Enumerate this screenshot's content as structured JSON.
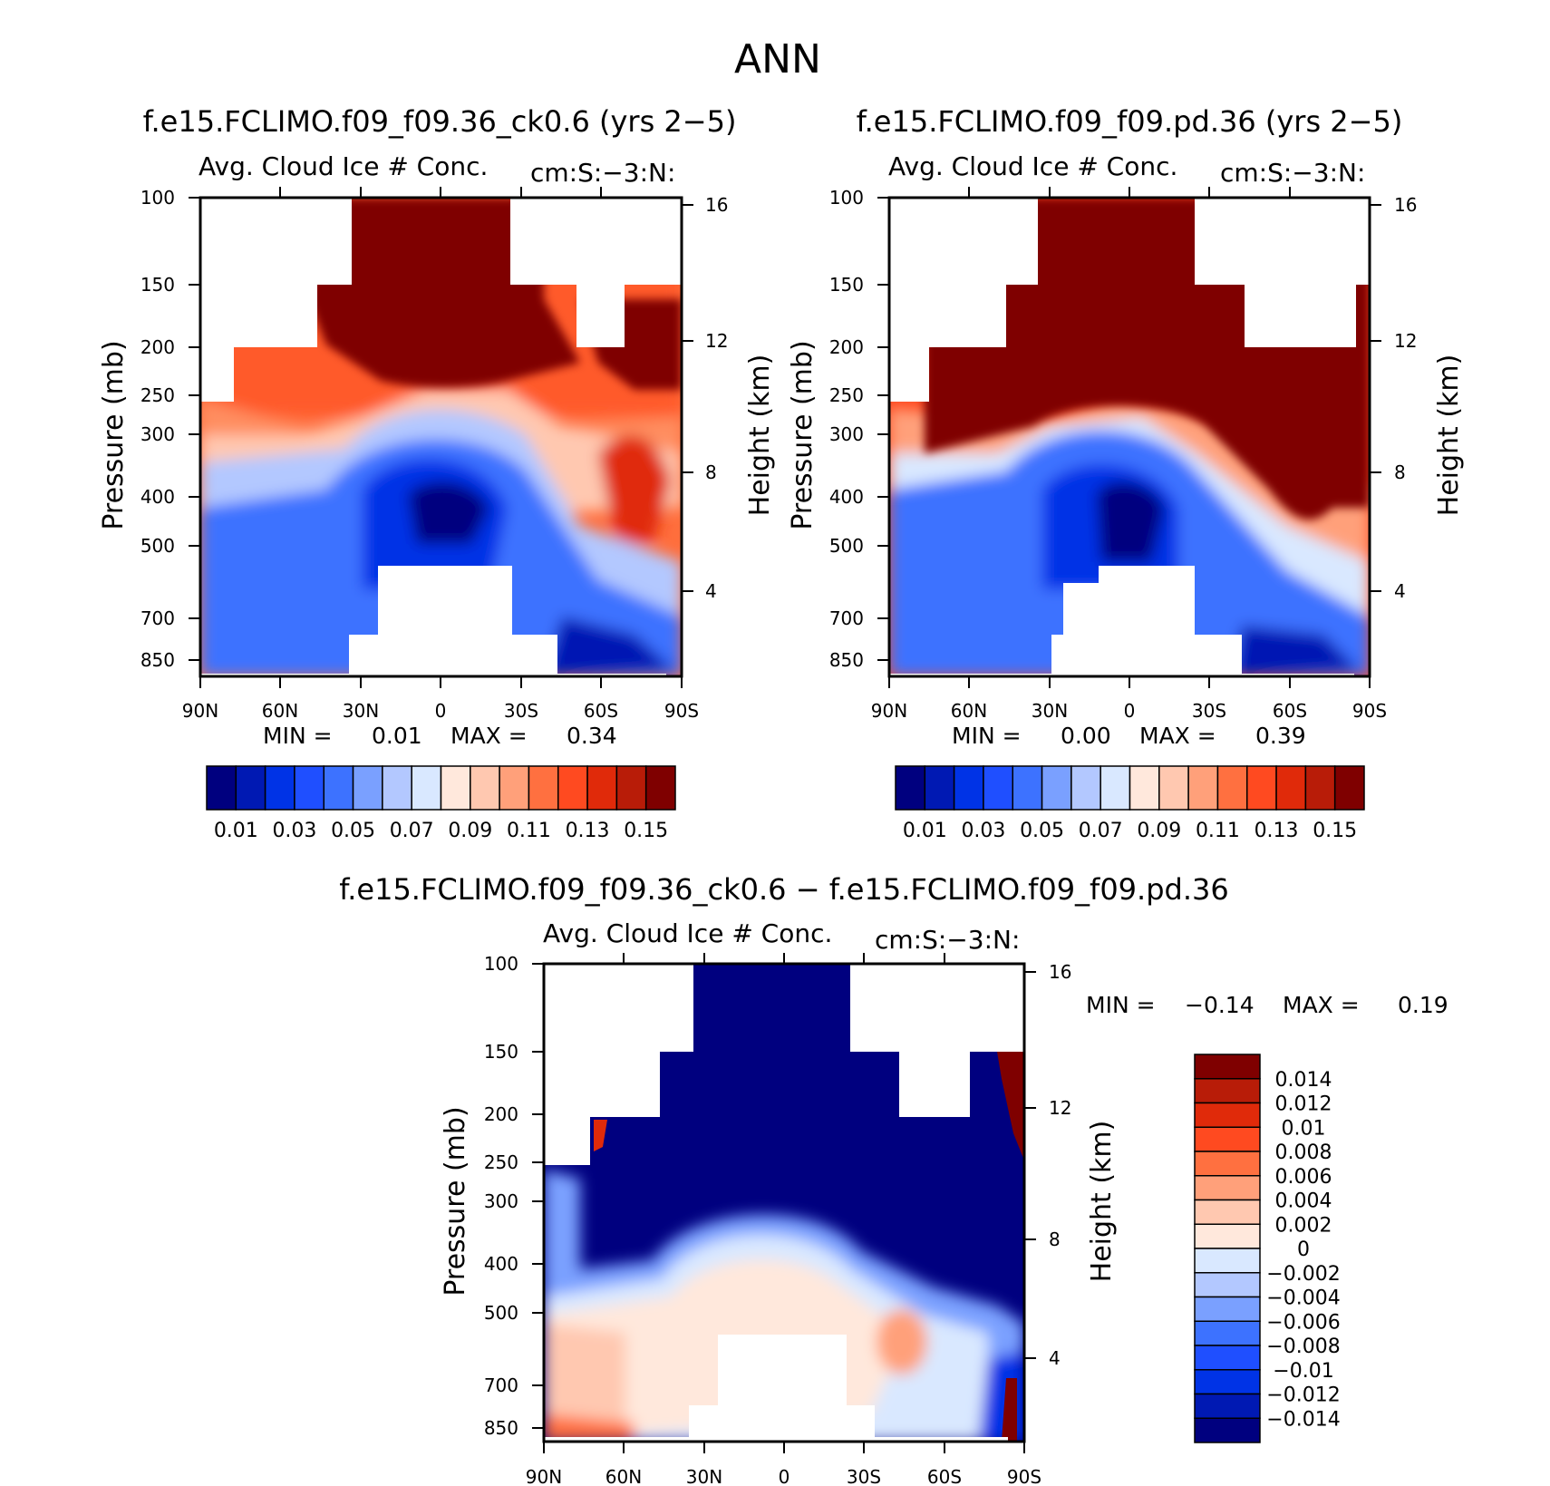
{
  "main_title": "ANN",
  "panels": [
    {
      "title": "f.e15.FCLIMO.f09_f09.36_ck0.6 (yrs 2−5)",
      "subtitle_left": "Avg. Cloud Ice # Conc.",
      "subtitle_right": "cm:S:−3:N:",
      "ylabel": "Pressure (mb)",
      "ylabel_right": "Height (km)",
      "min_label": "MIN =",
      "min_value": "0.01",
      "max_label": "MAX =",
      "max_value": "0.34"
    },
    {
      "title": "f.e15.FCLIMO.f09_f09.pd.36 (yrs 2−5)",
      "subtitle_left": "Avg. Cloud Ice # Conc.",
      "subtitle_right": "cm:S:−3:N:",
      "ylabel": "Pressure (mb)",
      "ylabel_right": "Height (km)",
      "min_label": "MIN =",
      "min_value": "0.00",
      "max_label": "MAX =",
      "max_value": "0.39"
    },
    {
      "title": "f.e15.FCLIMO.f09_f09.36_ck0.6 − f.e15.FCLIMO.f09_f09.pd.36",
      "subtitle_left": "Avg. Cloud Ice # Conc.",
      "subtitle_right": "cm:S:−3:N:",
      "ylabel": "Pressure (mb)",
      "ylabel_right": "Height (km)",
      "min_label": "MIN =",
      "min_value": "−0.14",
      "max_label": "MAX =",
      "max_value": "0.19"
    }
  ],
  "chart_data": [
    {
      "type": "heatmap",
      "title": "f.e15.FCLIMO.f09_f09.36_ck0.6 (yrs 2−5)",
      "x_ticks": [
        "90N",
        "60N",
        "30N",
        "0",
        "30S",
        "60S",
        "90S"
      ],
      "y_ticks": [
        "100",
        "150",
        "200",
        "250",
        "300",
        "400",
        "500",
        "700",
        "850"
      ],
      "y2_ticks": [
        "16",
        "12",
        "8",
        "4"
      ],
      "xlabel": "",
      "ylabel": "Pressure (mb)",
      "y2label": "Height (km)",
      "min": 0.01,
      "max": 0.34
    },
    {
      "type": "heatmap",
      "title": "f.e15.FCLIMO.f09_f09.pd.36 (yrs 2−5)",
      "x_ticks": [
        "90N",
        "60N",
        "30N",
        "0",
        "30S",
        "60S",
        "90S"
      ],
      "y_ticks": [
        "100",
        "150",
        "200",
        "250",
        "300",
        "400",
        "500",
        "700",
        "850"
      ],
      "y2_ticks": [
        "16",
        "12",
        "8",
        "4"
      ],
      "xlabel": "",
      "ylabel": "Pressure (mb)",
      "y2label": "Height (km)",
      "min": 0.0,
      "max": 0.39
    },
    {
      "type": "heatmap",
      "title": "f.e15.FCLIMO.f09_f09.36_ck0.6 − f.e15.FCLIMO.f09_f09.pd.36",
      "x_ticks": [
        "90N",
        "60N",
        "30N",
        "0",
        "30S",
        "60S",
        "90S"
      ],
      "y_ticks": [
        "100",
        "150",
        "200",
        "250",
        "300",
        "400",
        "500",
        "700",
        "850"
      ],
      "y2_ticks": [
        "16",
        "12",
        "8",
        "4"
      ],
      "xlabel": "",
      "ylabel": "Pressure (mb)",
      "y2label": "Height (km)",
      "min": -0.14,
      "max": 0.19
    }
  ],
  "colorbar_abs": {
    "colors": [
      "#00007f",
      "#0019b3",
      "#0033e6",
      "#1f4fff",
      "#3d72ff",
      "#7aa0ff",
      "#b3c8ff",
      "#d9e8ff",
      "#ffe8dc",
      "#ffc8b0",
      "#ffa07a",
      "#ff7040",
      "#ff4a20",
      "#e02a0a",
      "#b81c08",
      "#7f0000"
    ],
    "labels": [
      "0.01",
      "0.03",
      "0.05",
      "0.07",
      "0.09",
      "0.11",
      "0.13",
      "0.15"
    ]
  },
  "colorbar_diff": {
    "colors": [
      "#7f0000",
      "#b81c08",
      "#e02a0a",
      "#ff4a20",
      "#ff7040",
      "#ffa07a",
      "#ffc8b0",
      "#ffe8dc",
      "#d9e8ff",
      "#b3c8ff",
      "#7aa0ff",
      "#3d72ff",
      "#1f4fff",
      "#0033e6",
      "#0019b3",
      "#00007f"
    ],
    "labels": [
      "0.014",
      "0.012",
      "0.01",
      "0.008",
      "0.006",
      "0.004",
      "0.002",
      "0",
      "−0.002",
      "−0.004",
      "−0.006",
      "−0.008",
      "−0.01",
      "−0.012",
      "−0.014"
    ]
  }
}
